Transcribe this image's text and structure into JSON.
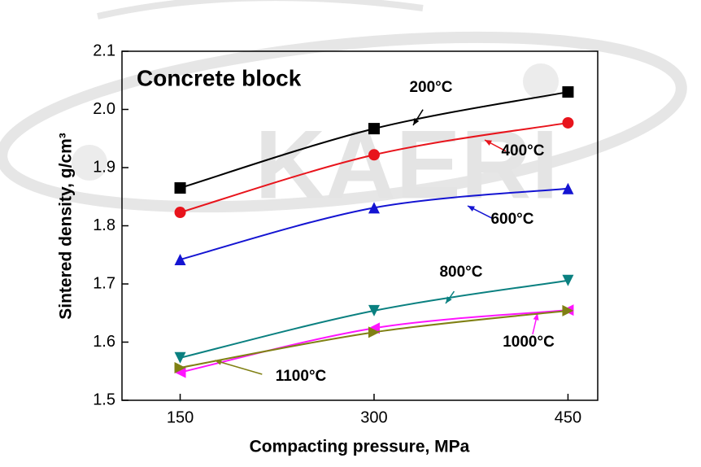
{
  "chart_data": {
    "type": "line",
    "title": "Concrete block",
    "watermark": "KAERI",
    "x_label": "Compacting pressure, MPa",
    "y_label": "Sintered density, g/cm³",
    "x": [
      150,
      300,
      450
    ],
    "xlim": [
      105,
      473
    ],
    "xticks": [
      150,
      300,
      450
    ],
    "ylim": [
      1.5,
      2.1
    ],
    "yticks": [
      1.5,
      1.6,
      1.7,
      1.8,
      1.9,
      {
        "value": 2.0,
        "label": "2.0"
      },
      2.1
    ],
    "series": [
      {
        "name": "200°C",
        "color": "#000000",
        "marker": "square",
        "values": [
          1.865,
          1.967,
          2.03
        ]
      },
      {
        "name": "400°C",
        "color": "#e8141c",
        "marker": "circle",
        "values": [
          1.823,
          1.922,
          1.977
        ]
      },
      {
        "name": "600°C",
        "color": "#1414d2",
        "marker": "triangle-up",
        "values": [
          1.742,
          1.831,
          1.864
        ]
      },
      {
        "name": "800°C",
        "color": "#0a8080",
        "marker": "triangle-down",
        "values": [
          1.573,
          1.654,
          1.706
        ]
      },
      {
        "name": "1000°C",
        "color": "#ff14ff",
        "marker": "triangle-left",
        "values": [
          1.548,
          1.624,
          1.655
        ]
      },
      {
        "name": "1100°C",
        "color": "#808014",
        "marker": "triangle-right",
        "values": [
          1.556,
          1.617,
          1.654
        ]
      }
    ]
  }
}
